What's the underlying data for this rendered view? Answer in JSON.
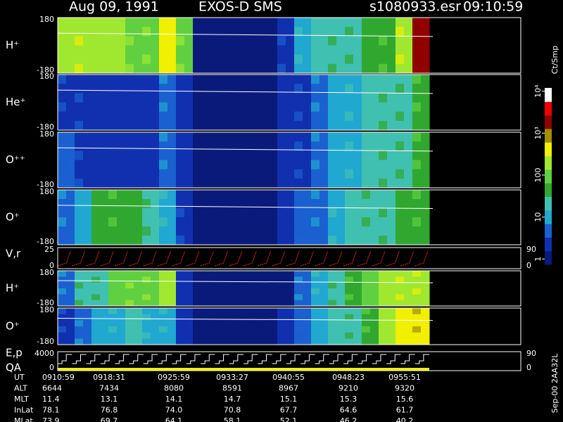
{
  "header": {
    "date": "Aug 09, 1991",
    "instrument": "EXOS-D SMS",
    "file": "s1080933.esr",
    "time": "09:10:59"
  },
  "panels": [
    {
      "label": "H⁺",
      "ticks": [
        "180",
        "-180"
      ],
      "values": [
        150,
        200,
        150,
        150,
        120,
        100,
        300,
        100,
        1,
        1,
        1,
        1,
        1,
        3,
        10,
        15,
        20,
        30,
        40,
        60,
        200,
        1500
      ]
    },
    {
      "label": "He⁺",
      "ticks": [
        "180",
        "-180"
      ],
      "values": [
        3,
        3,
        2,
        2,
        2,
        2,
        5,
        2,
        1,
        1,
        1,
        1,
        1,
        2,
        3,
        5,
        8,
        10,
        15,
        20,
        30,
        60
      ]
    },
    {
      "label": "O⁺⁺",
      "ticks": [
        "180",
        "-180"
      ],
      "values": [
        4,
        3,
        2,
        2,
        2,
        2,
        6,
        2,
        1,
        1,
        1,
        1,
        1,
        2,
        3,
        5,
        8,
        10,
        15,
        20,
        30,
        50
      ]
    },
    {
      "label": "O⁺",
      "ticks": [
        "180",
        "-180"
      ],
      "values": [
        5,
        8,
        40,
        50,
        40,
        20,
        10,
        3,
        1,
        1,
        1,
        1,
        1,
        2,
        4,
        6,
        10,
        15,
        20,
        30,
        40,
        60
      ]
    },
    {
      "label": "V,r",
      "ticks": [
        "25",
        "0"
      ],
      "right_ticks": [
        "90",
        "0"
      ]
    },
    {
      "label": "H⁺",
      "ticks": [
        "180",
        "-180"
      ],
      "values": [
        5,
        20,
        30,
        80,
        100,
        100,
        150,
        2,
        1,
        1,
        1,
        1,
        1,
        1,
        5,
        10,
        20,
        50,
        80,
        150,
        200,
        250
      ]
    },
    {
      "label": "O⁺",
      "ticks": [
        "180",
        "-180"
      ],
      "values": [
        3,
        5,
        8,
        10,
        15,
        10,
        10,
        2,
        1,
        1,
        1,
        1,
        1,
        2,
        4,
        8,
        15,
        30,
        60,
        150,
        300,
        400
      ]
    },
    {
      "label": "E,p",
      "sublabel": "QA",
      "ticks": [
        "4000",
        "0"
      ],
      "right_ticks": [
        "90",
        "0"
      ]
    }
  ],
  "colorbar": {
    "title": "Ct/Smp",
    "clim": [
      0.74,
      12000
    ],
    "ticks": [
      {
        "value": 1,
        "label": "1"
      },
      {
        "value": 10,
        "label": "10"
      },
      {
        "value": 100,
        "label": "100"
      },
      {
        "value": 1000,
        "label": "10³"
      },
      {
        "value": 10000,
        "label": "10⁴"
      }
    ],
    "colors": [
      "#0a1a7a",
      "#1030b0",
      "#1a60d0",
      "#20a8d0",
      "#40c0b0",
      "#30a830",
      "#60d040",
      "#a0e830",
      "#f0f000",
      "#a09000",
      "#900000",
      "#f00000",
      "#ffffff"
    ]
  },
  "table": {
    "rows": [
      [
        "UT",
        "0910:59",
        "0918:31",
        "0925:59",
        "0933:27",
        "0940:55",
        "0948:23",
        "0955:51"
      ],
      [
        "ALT",
        "6644",
        "7434",
        "8080",
        "8591",
        "8967",
        "9210",
        "9320"
      ],
      [
        "MLT",
        "11.4",
        "13.1",
        "14.1",
        "14.7",
        "15.1",
        "15.3",
        "15.6"
      ],
      [
        "InLat",
        "78.1",
        "76.8",
        "74.0",
        "70.8",
        "67.7",
        "64.6",
        "61.7"
      ],
      [
        "MLat",
        "73.9",
        "69.7",
        "64.1",
        "58.1",
        "52.1",
        "46.2",
        "40.2"
      ]
    ]
  },
  "footer": "Sep-00 2AA32L"
}
